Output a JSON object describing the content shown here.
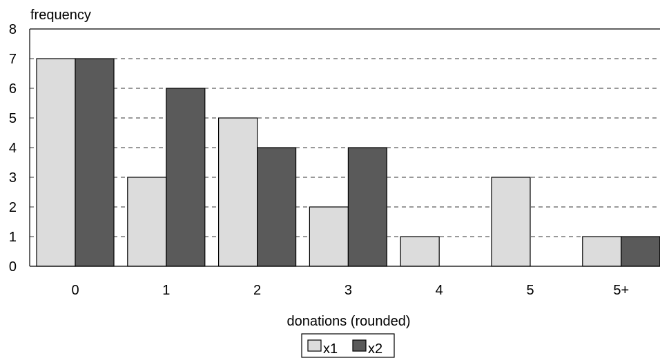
{
  "chart_data": {
    "type": "bar",
    "ylabel": "frequency",
    "xlabel": "donations (rounded)",
    "categories": [
      "0",
      "1",
      "2",
      "3",
      "4",
      "5",
      "5+"
    ],
    "series": [
      {
        "name": "x1",
        "values": [
          7,
          3,
          5,
          2,
          1,
          3,
          1
        ],
        "color": "#dcdcdc"
      },
      {
        "name": "x2",
        "values": [
          7,
          6,
          4,
          4,
          0,
          0,
          1
        ],
        "color": "#5a5a5a"
      }
    ],
    "ylim": [
      0,
      8
    ],
    "yticks": [
      0,
      1,
      2,
      3,
      4,
      5,
      6,
      7,
      8
    ],
    "grid": "horizontal dashed",
    "legend_position": "bottom-center"
  }
}
